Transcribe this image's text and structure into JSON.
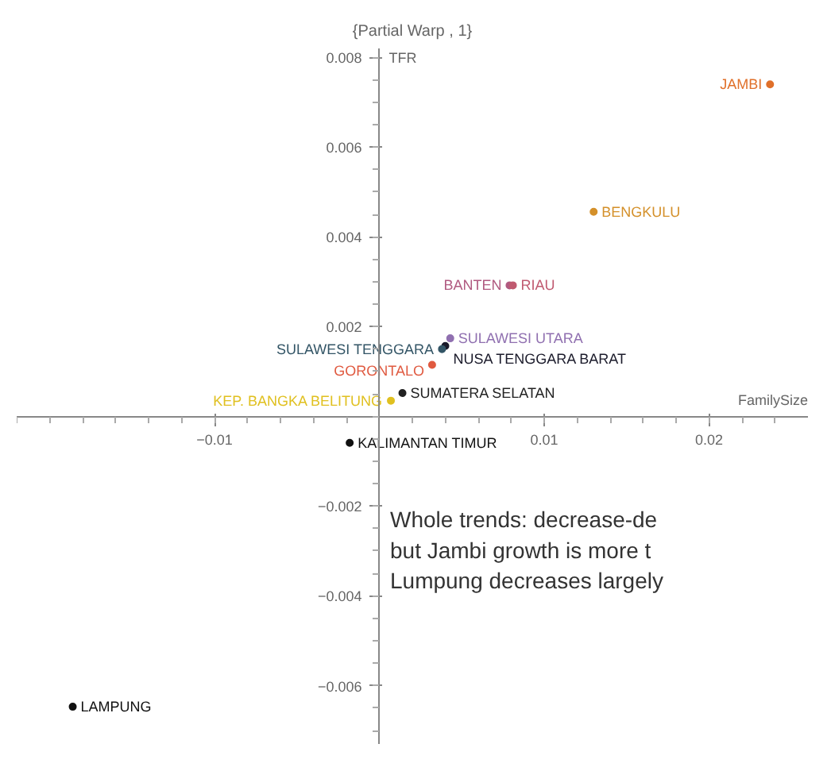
{
  "chart_data": {
    "type": "scatter",
    "title": "{Partial Warp , 1}",
    "xlabel": "FamilySize",
    "ylabel": "TFR",
    "marker": "circle",
    "grid": false,
    "xlim": [
      -0.022,
      0.026
    ],
    "ylim": [
      -0.0073,
      0.0082
    ],
    "xticks": [
      {
        "value": -0.01,
        "label": "−0.01"
      },
      0.01,
      0.02
    ],
    "yticks": [
      {
        "value": -0.006,
        "label": "−0.006"
      },
      {
        "value": -0.004,
        "label": "−0.004"
      },
      {
        "value": -0.002,
        "label": "−0.002"
      },
      0.002,
      0.004,
      0.006,
      0.008
    ],
    "series": [
      {
        "name": "JAMBI",
        "color": "#e0702a",
        "x": [
          0.0237
        ],
        "values": [
          0.0074
        ]
      },
      {
        "name": "BENGKULU",
        "color": "#d4902a",
        "x": [
          0.013
        ],
        "values": [
          0.00456
        ]
      },
      {
        "name": "BANTEN",
        "color": "#b05a80",
        "x": [
          0.0079
        ],
        "values": [
          0.00292
        ]
      },
      {
        "name": "RIAU",
        "color": "#c05a70",
        "x": [
          0.0081
        ],
        "values": [
          0.00292
        ]
      },
      {
        "name": "SULAWESI UTARA",
        "color": "#9070b0",
        "x": [
          0.0043
        ],
        "values": [
          0.00174
        ]
      },
      {
        "name": "NUSA TENGGARA BARAT",
        "color": "#1a1a2a",
        "x": [
          0.004
        ],
        "values": [
          0.00157
        ]
      },
      {
        "name": "SULAWESI TENGGARA",
        "color": "#335566",
        "x": [
          0.0038
        ],
        "values": [
          0.0015
        ]
      },
      {
        "name": "GORONTALO",
        "color": "#e05a40",
        "x": [
          0.0032
        ],
        "values": [
          0.00115
        ]
      },
      {
        "name": "SUMATERA SELATAN",
        "color": "#222222",
        "x": [
          0.0014
        ],
        "values": [
          0.00052
        ]
      },
      {
        "name": "KEP. BANGKA BELITUNG",
        "color": "#e0c020",
        "x": [
          0.0007
        ],
        "values": [
          0.00035
        ]
      },
      {
        "name": "KALIMANTAN TIMUR",
        "color": "#111111",
        "x": [
          -0.0018
        ],
        "values": [
          -0.00059
        ]
      },
      {
        "name": "LAMPUNG",
        "color": "#111111",
        "x": [
          -0.0186
        ],
        "values": [
          -0.00647
        ]
      }
    ],
    "annotations": [
      "Whole trends: decrease-de\nbut Jambi growth is more t\nLumpung decreases largely"
    ]
  }
}
